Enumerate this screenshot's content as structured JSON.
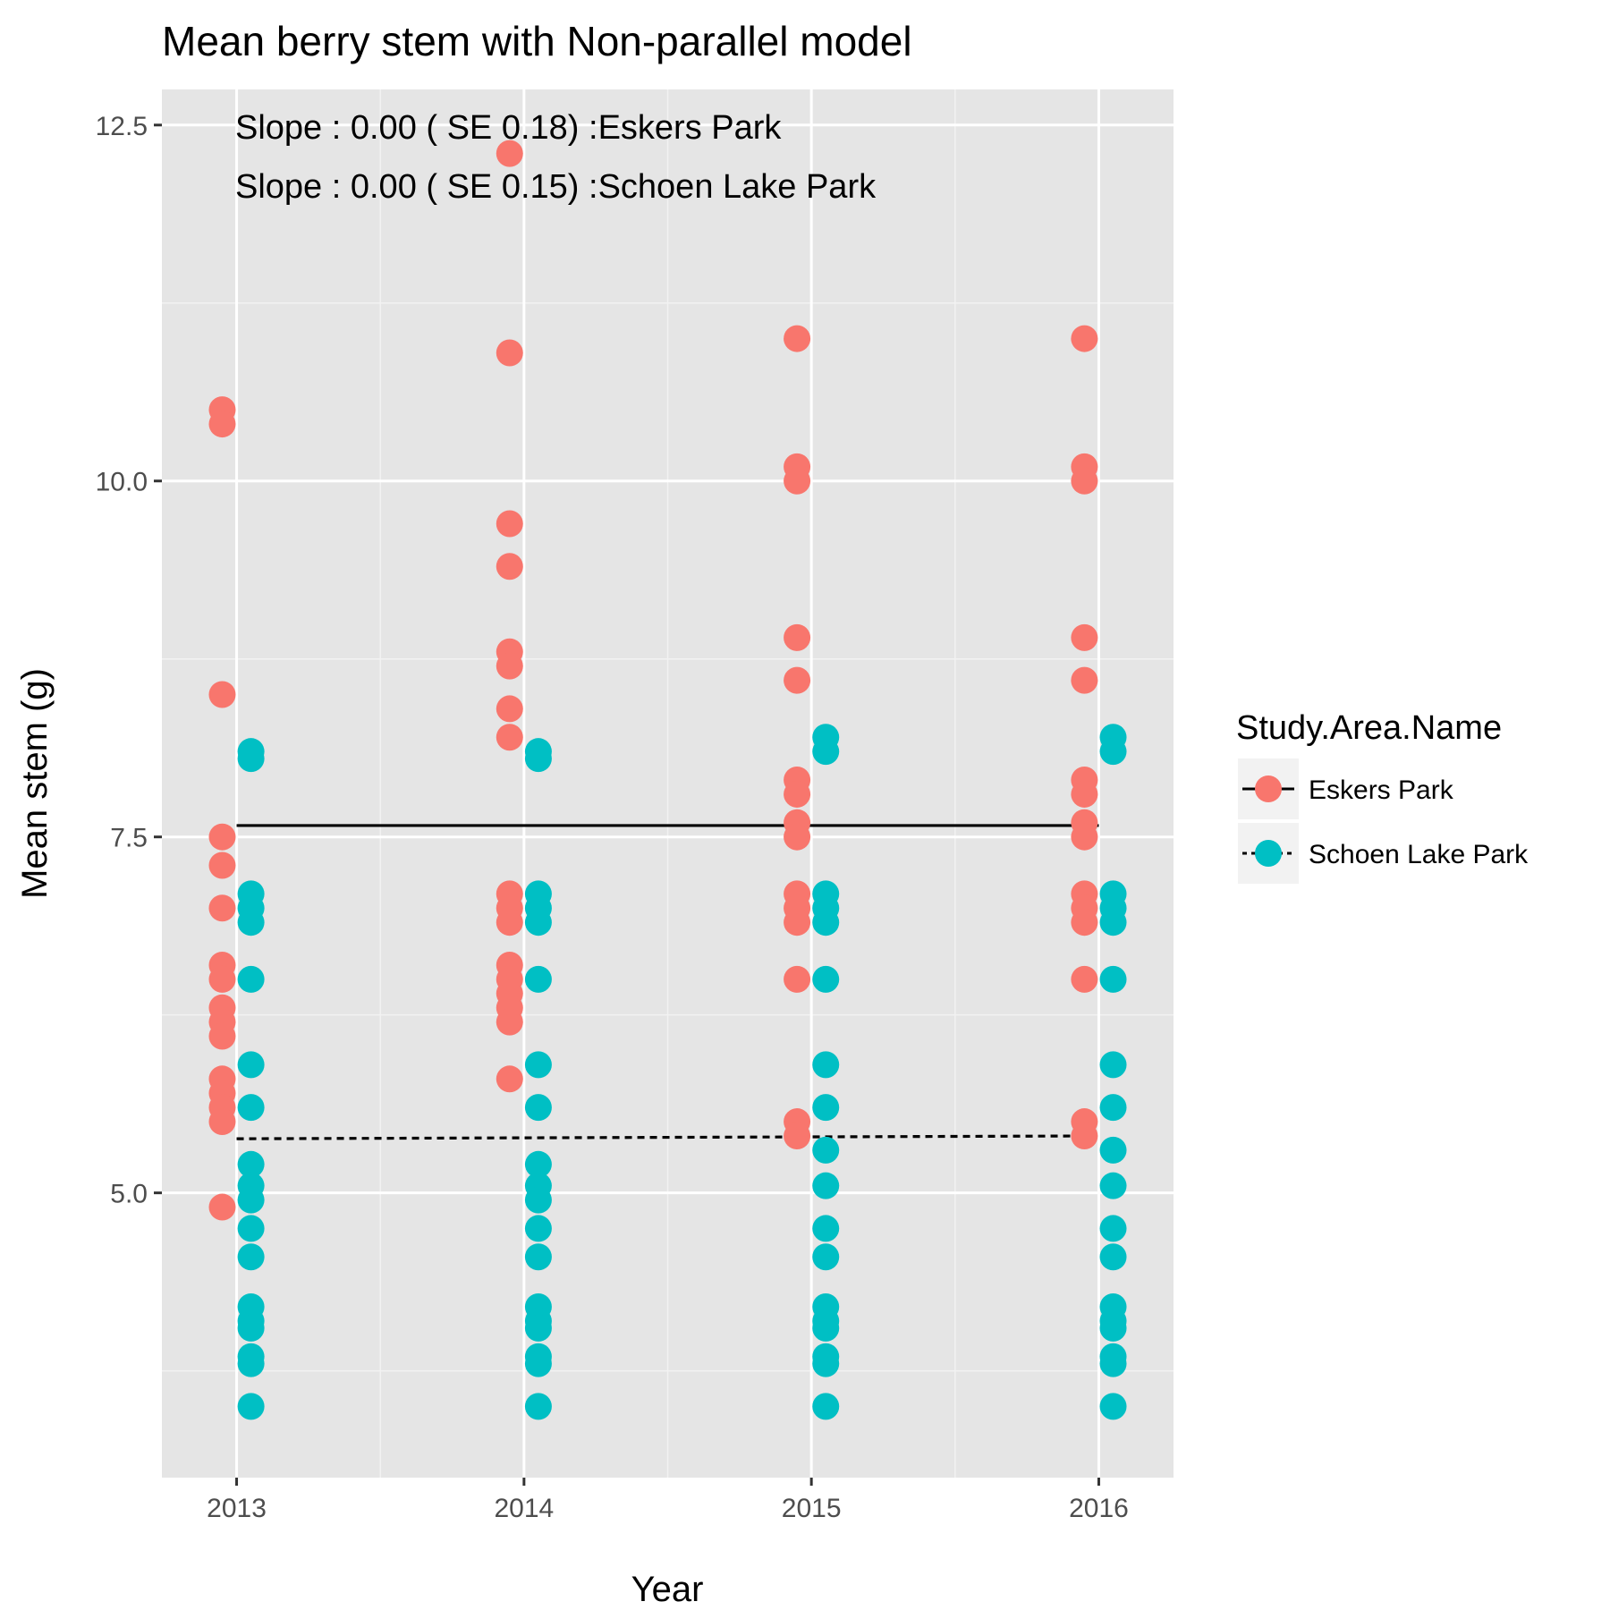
{
  "chart_data": {
    "type": "scatter",
    "title": "Mean berry stem with  Non-parallel model",
    "xlabel": "Year",
    "ylabel": "Mean stem (g)",
    "x_ticks": [
      "2013",
      "2014",
      "2015",
      "2016"
    ],
    "y_ticks": [
      "5.0",
      "7.5",
      "10.0",
      "12.5"
    ],
    "ylim": [
      3.0,
      12.75
    ],
    "grid": true,
    "annotations": [
      "Slope : 0.00 ( SE 0.18) :Eskers Park",
      "Slope : 0.00 ( SE 0.15) :Schoen Lake Park"
    ],
    "legend": {
      "title": "Study.Area.Name",
      "position": "right"
    },
    "series": [
      {
        "name": "Eskers Park",
        "color": "#F8766D",
        "line_style": "solid",
        "fit": {
          "x": [
            2013,
            2016
          ],
          "y": [
            7.58,
            7.58
          ]
        },
        "points": [
          {
            "x": 2013,
            "values": [
              10.5,
              10.4,
              8.5,
              7.5,
              7.3,
              7.0,
              6.6,
              6.5,
              6.3,
              6.2,
              6.1,
              5.8,
              5.7,
              5.6,
              5.5,
              4.9
            ]
          },
          {
            "x": 2014,
            "values": [
              12.3,
              10.9,
              9.7,
              9.4,
              8.8,
              8.7,
              8.4,
              8.2,
              7.1,
              7.0,
              6.9,
              6.6,
              6.5,
              6.4,
              6.3,
              6.2,
              5.8
            ]
          },
          {
            "x": 2015,
            "values": [
              11.0,
              10.1,
              10.0,
              8.9,
              8.6,
              7.9,
              7.8,
              7.6,
              7.5,
              7.1,
              7.0,
              6.9,
              6.5,
              5.5,
              5.4
            ]
          },
          {
            "x": 2016,
            "values": [
              11.0,
              10.1,
              10.0,
              8.9,
              8.6,
              7.9,
              7.8,
              7.6,
              7.5,
              7.1,
              7.0,
              6.9,
              6.5,
              5.5,
              5.4
            ]
          }
        ]
      },
      {
        "name": "Schoen Lake Park",
        "color": "#00BFC4",
        "line_style": "dotted",
        "fit": {
          "x": [
            2013,
            2016
          ],
          "y": [
            5.38,
            5.4
          ]
        },
        "points": [
          {
            "x": 2013,
            "values": [
              8.1,
              8.05,
              7.1,
              7.0,
              6.9,
              6.5,
              5.9,
              5.6,
              5.2,
              5.05,
              4.95,
              4.75,
              4.55,
              4.2,
              4.1,
              4.05,
              3.85,
              3.8,
              3.5
            ]
          },
          {
            "x": 2014,
            "values": [
              8.1,
              8.05,
              7.1,
              7.0,
              6.9,
              6.5,
              5.9,
              5.6,
              5.2,
              5.05,
              4.95,
              4.75,
              4.55,
              4.2,
              4.1,
              4.05,
              3.85,
              3.8,
              3.5
            ]
          },
          {
            "x": 2015,
            "values": [
              8.2,
              8.1,
              7.1,
              7.0,
              6.9,
              6.5,
              5.9,
              5.6,
              5.3,
              5.05,
              4.75,
              4.55,
              4.2,
              4.1,
              4.05,
              3.85,
              3.8,
              3.5
            ]
          },
          {
            "x": 2016,
            "values": [
              8.2,
              8.1,
              7.1,
              7.0,
              6.9,
              6.5,
              5.9,
              5.6,
              5.3,
              5.05,
              4.75,
              4.55,
              4.2,
              4.1,
              4.05,
              3.85,
              3.8,
              3.5
            ]
          }
        ]
      }
    ]
  }
}
